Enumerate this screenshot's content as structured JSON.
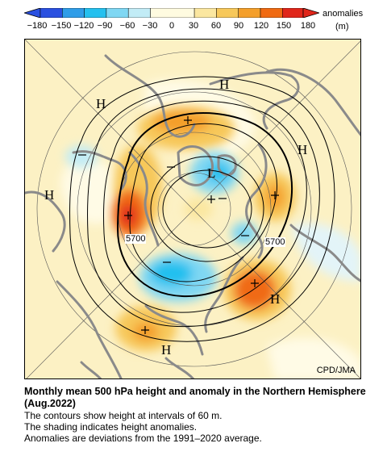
{
  "colorbar": {
    "title": "anomalies",
    "unit": "(m)",
    "ticks": [
      "−180",
      "−150",
      "−120",
      "−90",
      "−60",
      "−30",
      "0",
      "30",
      "60",
      "90",
      "120",
      "150",
      "180"
    ],
    "colors": [
      "#2a50e0",
      "#2f9de8",
      "#24c0ef",
      "#7fd7f3",
      "#c2ecf6",
      "#fffbe0",
      "#fbe7a0",
      "#f7c85a",
      "#f49f2a",
      "#f06a12",
      "#e0261a"
    ]
  },
  "map": {
    "high_labels": [
      "H",
      "H",
      "H",
      "H",
      "H",
      "H"
    ],
    "low_labels": [
      "L"
    ],
    "contour_labels": [
      "5700",
      "5700"
    ],
    "credit": "CPD/JMA"
  },
  "caption": {
    "title": "Monthly mean 500 hPa height and anomaly in the Northern Hemisphere (Aug.2022)",
    "lines": [
      "The contours show height at intervals of 60 m.",
      "The shading indicates height anomalies.",
      "Anomalies are deviations from the 1991–2020 average."
    ]
  }
}
